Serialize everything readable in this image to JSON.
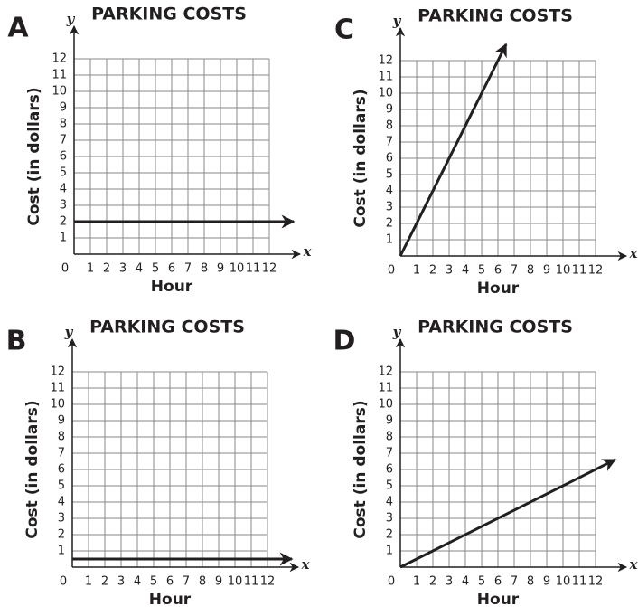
{
  "chart_data": [
    {
      "type": "line",
      "label": "A",
      "title": "PARKING COSTS",
      "x_label": "Hour",
      "y_label": "Cost (in dollars)",
      "x_symbol": "x",
      "y_symbol": "y",
      "xlim": [
        0,
        12
      ],
      "ylim": [
        0,
        12
      ],
      "xticks": [
        0,
        1,
        2,
        3,
        4,
        5,
        6,
        7,
        8,
        9,
        10,
        11,
        12
      ],
      "yticks": [
        1,
        2,
        3,
        4,
        5,
        6,
        7,
        8,
        9,
        10,
        11,
        12
      ],
      "grid": true,
      "x": [
        0,
        13.5
      ],
      "series": [
        {
          "color": "#231f20",
          "values": [
            2,
            2
          ]
        }
      ]
    },
    {
      "type": "line",
      "label": "B",
      "title": "PARKING COSTS",
      "x_label": "Hour",
      "y_label": "Cost (in dollars)",
      "x_symbol": "x",
      "y_symbol": "y",
      "xlim": [
        0,
        12
      ],
      "ylim": [
        0,
        12
      ],
      "xticks": [
        0,
        1,
        2,
        3,
        4,
        5,
        6,
        7,
        8,
        9,
        10,
        11,
        12
      ],
      "yticks": [
        1,
        2,
        3,
        4,
        5,
        6,
        7,
        8,
        9,
        10,
        11,
        12
      ],
      "grid": true,
      "x": [
        0,
        13.5
      ],
      "series": [
        {
          "color": "#231f20",
          "values": [
            0.5,
            0.5
          ]
        }
      ]
    },
    {
      "type": "line",
      "label": "C",
      "title": "PARKING COSTS",
      "x_label": "Hour",
      "y_label": "Cost (in dollars)",
      "x_symbol": "x",
      "y_symbol": "y",
      "xlim": [
        0,
        12
      ],
      "ylim": [
        0,
        12
      ],
      "xticks": [
        0,
        1,
        2,
        3,
        4,
        5,
        6,
        7,
        8,
        9,
        10,
        11,
        12
      ],
      "yticks": [
        1,
        2,
        3,
        4,
        5,
        6,
        7,
        8,
        9,
        10,
        11,
        12
      ],
      "grid": true,
      "x": [
        0,
        6.5
      ],
      "series": [
        {
          "color": "#231f20",
          "values": [
            0,
            13
          ]
        }
      ]
    },
    {
      "type": "line",
      "label": "D",
      "title": "PARKING COSTS",
      "x_label": "Hour",
      "y_label": "Cost (in dollars)",
      "x_symbol": "x",
      "y_symbol": "y",
      "xlim": [
        0,
        12
      ],
      "ylim": [
        0,
        12
      ],
      "xticks": [
        0,
        1,
        2,
        3,
        4,
        5,
        6,
        7,
        8,
        9,
        10,
        11,
        12
      ],
      "yticks": [
        1,
        2,
        3,
        4,
        5,
        6,
        7,
        8,
        9,
        10,
        11,
        12
      ],
      "grid": true,
      "x": [
        0,
        13.2
      ],
      "series": [
        {
          "color": "#231f20",
          "values": [
            0,
            6.6
          ]
        }
      ]
    }
  ]
}
